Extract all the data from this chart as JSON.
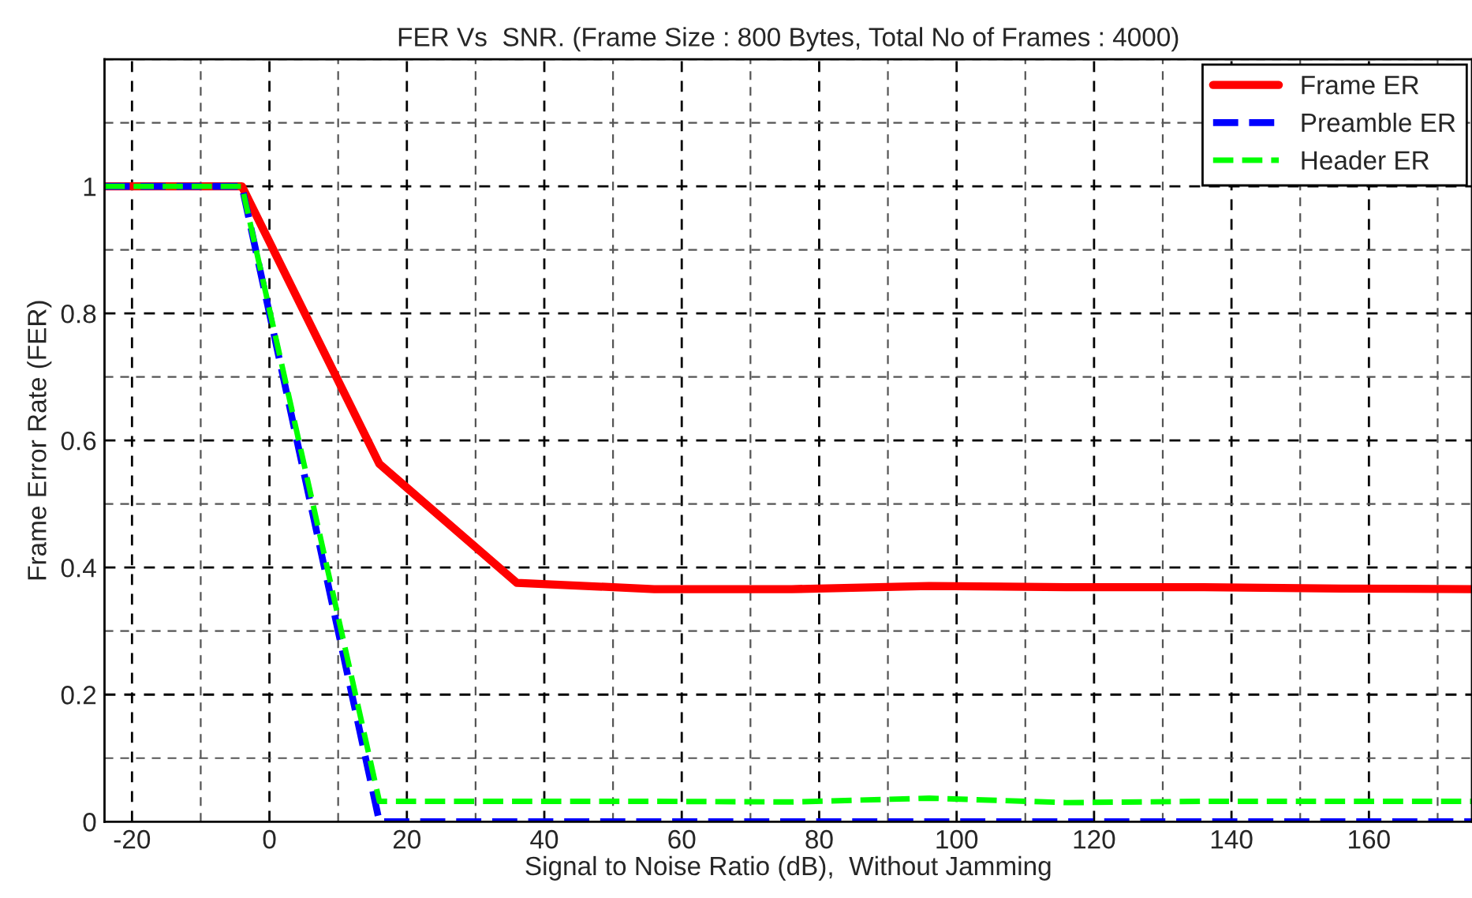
{
  "chart_data": {
    "type": "line",
    "title": "FER Vs  SNR. (Frame Size : 800 Bytes, Total No of Frames : 4000)",
    "xlabel": "Signal to Noise Ratio (dB),  Without Jamming",
    "ylabel": "Frame Error Rate (FER)",
    "x": [
      -24,
      -4,
      16,
      36,
      56,
      76,
      96,
      116,
      136,
      156,
      175
    ],
    "series": [
      {
        "name": "Frame ER",
        "color": "#ff0000",
        "line_style": "solid",
        "values": [
          1,
          1,
          0.563,
          0.376,
          0.366,
          0.366,
          0.371,
          0.369,
          0.369,
          0.367,
          0.366
        ]
      },
      {
        "name": "Preamble ER",
        "color": "#0000ff",
        "line_style": "dashed",
        "values": [
          1,
          1,
          0,
          0,
          0,
          0,
          0,
          0,
          0,
          0,
          0
        ]
      },
      {
        "name": "Header ER",
        "color": "#00ff00",
        "line_style": "dashed",
        "values": [
          1,
          1,
          0.032,
          0.032,
          0.032,
          0.031,
          0.037,
          0.03,
          0.032,
          0.032,
          0.032
        ]
      }
    ],
    "xlim": [
      -24,
      175
    ],
    "ylim": [
      0,
      1.2
    ],
    "xticks": [
      -20,
      0,
      20,
      40,
      60,
      80,
      100,
      120,
      140,
      160
    ],
    "yticks": [
      0,
      0.2,
      0.4,
      0.6,
      0.8,
      1
    ],
    "grid": true,
    "legend": "top right"
  }
}
